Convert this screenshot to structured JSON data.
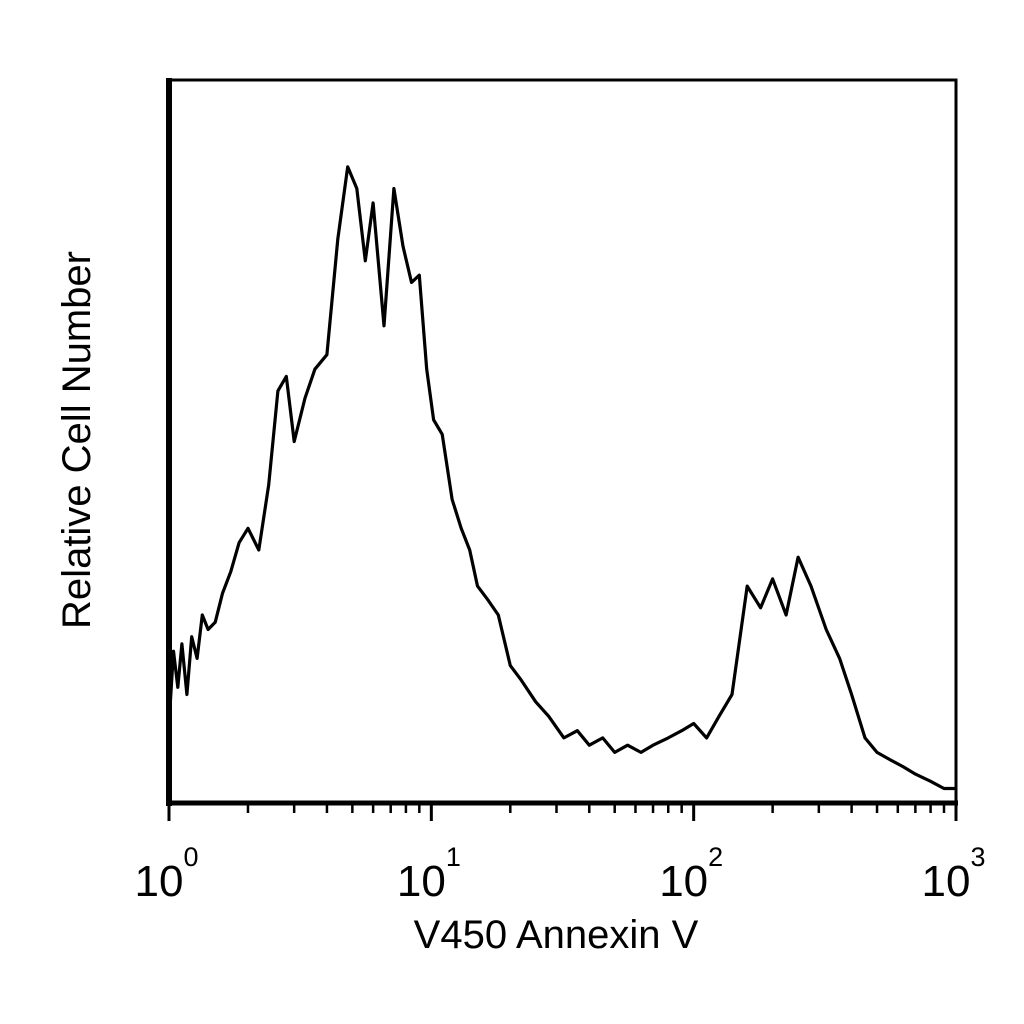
{
  "chart_data": {
    "type": "line",
    "title": "",
    "xlabel": "V450 Annexin V",
    "ylabel": "Relative Cell Number",
    "x_scale": "log",
    "xlim": [
      1,
      1000
    ],
    "ylim": [
      0,
      100
    ],
    "grid": false,
    "legend": "none",
    "x_ticks": [
      {
        "base": "10",
        "exp": "0",
        "value": 1
      },
      {
        "base": "10",
        "exp": "1",
        "value": 10
      },
      {
        "base": "10",
        "exp": "2",
        "value": 100
      },
      {
        "base": "10",
        "exp": "3",
        "value": 1000
      }
    ],
    "series": [
      {
        "color": "#000000",
        "x": [
          1.0,
          1.04,
          1.08,
          1.12,
          1.17,
          1.22,
          1.28,
          1.34,
          1.41,
          1.5,
          1.6,
          1.72,
          1.85,
          2.0,
          2.2,
          2.4,
          2.6,
          2.8,
          3.0,
          3.3,
          3.6,
          4.0,
          4.4,
          4.8,
          5.2,
          5.6,
          6.0,
          6.6,
          7.2,
          7.8,
          8.4,
          9.0,
          9.6,
          10.2,
          11.0,
          12.0,
          13.0,
          14.0,
          15.0,
          16.5,
          18.0,
          20.0,
          22.0,
          25.0,
          28.0,
          32.0,
          36.0,
          40.0,
          45.0,
          50.0,
          56.0,
          63.0,
          70.0,
          80.0,
          90.0,
          100.0,
          112.0,
          125.0,
          140.0,
          160.0,
          180.0,
          200.0,
          225.0,
          250.0,
          280.0,
          320.0,
          360.0,
          400.0,
          450.0,
          500.0,
          560.0,
          630.0,
          700.0,
          800.0,
          900.0,
          1000.0
        ],
        "y": [
          11,
          21,
          16,
          22,
          15,
          23,
          20,
          26,
          24,
          25,
          29,
          32,
          36,
          38,
          35,
          44,
          57,
          59,
          50,
          56,
          60,
          62,
          78,
          88,
          85,
          75,
          83,
          66,
          85,
          77,
          72,
          73,
          60,
          53,
          51,
          42,
          38,
          35,
          30,
          28,
          26,
          19,
          17,
          14,
          12,
          9,
          10,
          8,
          9,
          7,
          8,
          7,
          8,
          9,
          10,
          11,
          9,
          12,
          15,
          30,
          27,
          31,
          26,
          34,
          30,
          24,
          20,
          15,
          9,
          7,
          6,
          5,
          4,
          3,
          2,
          2
        ]
      }
    ]
  }
}
